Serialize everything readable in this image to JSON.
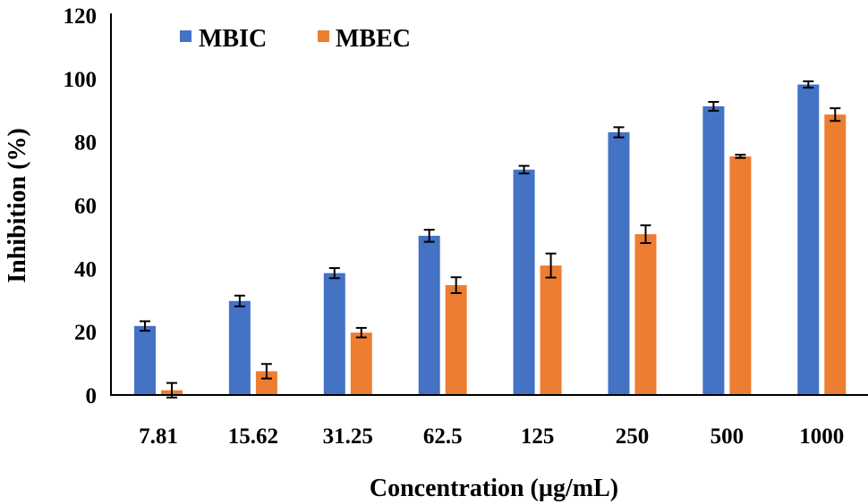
{
  "chart_data": {
    "type": "bar",
    "title": "",
    "xlabel": "Concentration (µg/mL)",
    "ylabel": "Inhibition (%)",
    "ylim": [
      0,
      120
    ],
    "yticks": [
      0,
      20,
      40,
      60,
      80,
      100,
      120
    ],
    "grid": false,
    "legend_position": "top-left",
    "categories": [
      "7.81",
      "15.62",
      "31.25",
      "62.5",
      "125",
      "250",
      "500",
      "1000"
    ],
    "series": [
      {
        "name": "MBIC",
        "color": "#4472C4",
        "values": [
          21.8,
          29.7,
          38.5,
          50.3,
          71.2,
          83.0,
          91.2,
          98.1
        ],
        "errors": [
          1.5,
          1.7,
          1.6,
          1.9,
          1.2,
          1.6,
          1.4,
          1.0
        ]
      },
      {
        "name": "MBEC",
        "color": "#ED7D31",
        "values": [
          1.5,
          7.5,
          19.7,
          34.7,
          40.9,
          50.8,
          75.4,
          88.6
        ],
        "errors": [
          2.3,
          2.3,
          1.5,
          2.5,
          3.8,
          2.8,
          0.5,
          2.0
        ]
      }
    ]
  }
}
